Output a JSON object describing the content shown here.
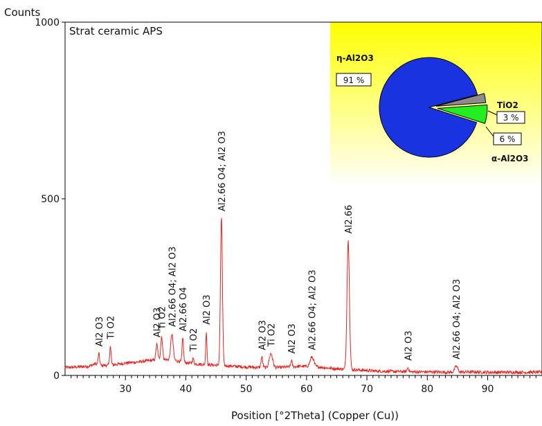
{
  "chart_data": [
    {
      "type": "line",
      "title": "Strat ceramic APS",
      "xlabel": "Position [°2Theta] (Copper (Cu))",
      "ylabel": "Counts",
      "xlim": [
        20,
        99
      ],
      "ylim": [
        0,
        1000
      ],
      "x_ticks": [
        "30",
        "40",
        "50",
        "60",
        "70",
        "80",
        "90"
      ],
      "x_tick_values": [
        30,
        40,
        50,
        60,
        70,
        80,
        90
      ],
      "y_ticks": [
        "0",
        "500",
        "1000"
      ],
      "y_tick_values": [
        0,
        500,
        1000
      ],
      "grid": false,
      "color": "#e8231f",
      "baseline": [
        [
          20,
          22
        ],
        [
          22,
          24
        ],
        [
          24,
          26
        ],
        [
          25,
          33
        ],
        [
          26,
          28
        ],
        [
          28,
          30
        ],
        [
          30,
          35
        ],
        [
          32,
          38
        ],
        [
          34,
          42
        ],
        [
          36,
          46
        ],
        [
          38,
          43
        ],
        [
          40,
          36
        ],
        [
          42,
          32
        ],
        [
          44,
          30
        ],
        [
          47,
          27
        ],
        [
          50,
          24
        ],
        [
          53,
          22
        ],
        [
          56,
          23
        ],
        [
          59,
          26
        ],
        [
          62,
          24
        ],
        [
          64,
          20
        ],
        [
          66,
          18
        ],
        [
          69,
          15
        ],
        [
          72,
          12
        ],
        [
          75,
          11
        ],
        [
          78,
          10
        ],
        [
          81,
          10
        ],
        [
          84,
          9
        ],
        [
          87,
          10
        ],
        [
          90,
          9
        ],
        [
          93,
          9
        ],
        [
          96,
          9
        ],
        [
          99,
          9
        ]
      ],
      "peaks": [
        {
          "x": 25.6,
          "y": 62,
          "w": 0.12
        },
        {
          "x": 27.5,
          "y": 83,
          "w": 0.12
        },
        {
          "x": 35.2,
          "y": 88,
          "w": 0.15
        },
        {
          "x": 36.0,
          "y": 110,
          "w": 0.15
        },
        {
          "x": 37.7,
          "y": 118,
          "w": 0.2
        },
        {
          "x": 39.5,
          "y": 105,
          "w": 0.12
        },
        {
          "x": 41.2,
          "y": 48,
          "w": 0.12
        },
        {
          "x": 43.4,
          "y": 124,
          "w": 0.1
        },
        {
          "x": 45.9,
          "y": 445,
          "w": 0.16
        },
        {
          "x": 52.6,
          "y": 52,
          "w": 0.14
        },
        {
          "x": 54.1,
          "y": 62,
          "w": 0.28
        },
        {
          "x": 57.5,
          "y": 42,
          "w": 0.12
        },
        {
          "x": 60.9,
          "y": 52,
          "w": 0.3
        },
        {
          "x": 66.9,
          "y": 382,
          "w": 0.2
        },
        {
          "x": 76.8,
          "y": 22,
          "w": 0.14
        },
        {
          "x": 84.8,
          "y": 26,
          "w": 0.25
        }
      ],
      "annotations": [
        {
          "x": 25.6,
          "text": "Al2 O3"
        },
        {
          "x": 27.5,
          "text": "Ti O2"
        },
        {
          "x": 35.2,
          "text": "Al2 O3"
        },
        {
          "x": 36.0,
          "text": "Ti O2"
        },
        {
          "x": 37.7,
          "text": "Al2.66 O4; Al2 O3"
        },
        {
          "x": 39.5,
          "text": "Al2.66 O4"
        },
        {
          "x": 41.2,
          "text": "Ti O2"
        },
        {
          "x": 43.4,
          "text": "Al2 O3"
        },
        {
          "x": 45.9,
          "text": "Al2.66 O4; Al2 O3"
        },
        {
          "x": 52.6,
          "text": "Al2 O3"
        },
        {
          "x": 54.1,
          "text": "Ti O2"
        },
        {
          "x": 57.5,
          "text": "Al2 O3"
        },
        {
          "x": 60.9,
          "text": "Al2.66 O4; Al2 O3"
        },
        {
          "x": 66.9,
          "text": "Al2.66"
        },
        {
          "x": 76.8,
          "text": "Al2 O3"
        },
        {
          "x": 84.8,
          "text": "Al2.66 O4; Al2 O3"
        }
      ]
    },
    {
      "type": "pie",
      "categories": [
        "η-Al2O3",
        "TiO2",
        "α-Al2O3"
      ],
      "values": [
        91,
        3,
        6
      ],
      "labels": [
        "91 %",
        "3 %",
        "6 %"
      ],
      "colors": [
        "#1a33e0",
        "#8c8c8c",
        "#22ee22"
      ],
      "legend_bg_colors": [
        "#ffff00",
        "#ffffff"
      ]
    }
  ]
}
